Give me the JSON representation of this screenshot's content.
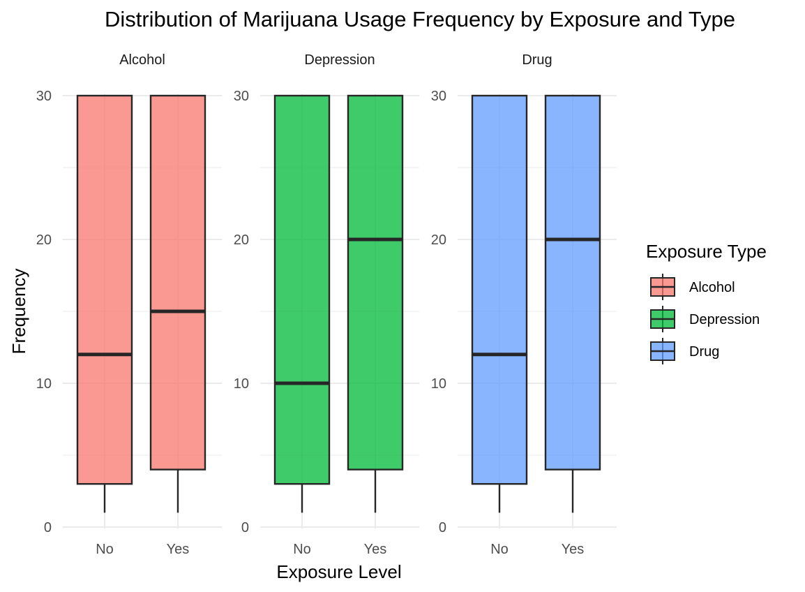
{
  "chart_data": {
    "type": "boxplot",
    "title": "Distribution of Marijuana Usage Frequency by Exposure and Type",
    "xlabel": "Exposure Level",
    "ylabel": "Frequency",
    "ylim": [
      0,
      30
    ],
    "yticks": [
      0,
      10,
      20,
      30
    ],
    "categories": [
      "No",
      "Yes"
    ],
    "grid": true,
    "legend": {
      "title": "Exposure Type",
      "position": "right",
      "entries": [
        {
          "label": "Alcohol",
          "color": "#F8766D"
        },
        {
          "label": "Depression",
          "color": "#00BA38"
        },
        {
          "label": "Drug",
          "color": "#619CFF"
        }
      ]
    },
    "facets": [
      {
        "name": "Alcohol",
        "color": "#F8766D",
        "boxes": [
          {
            "x": "No",
            "min": 1,
            "q1": 3,
            "median": 12,
            "q3": 30,
            "max": 30
          },
          {
            "x": "Yes",
            "min": 1,
            "q1": 4,
            "median": 15,
            "q3": 30,
            "max": 30
          }
        ]
      },
      {
        "name": "Depression",
        "color": "#00BA38",
        "boxes": [
          {
            "x": "No",
            "min": 1,
            "q1": 3,
            "median": 10,
            "q3": 30,
            "max": 30
          },
          {
            "x": "Yes",
            "min": 1,
            "q1": 4,
            "median": 20,
            "q3": 30,
            "max": 30
          }
        ]
      },
      {
        "name": "Drug",
        "color": "#619CFF",
        "boxes": [
          {
            "x": "No",
            "min": 1,
            "q1": 3,
            "median": 12,
            "q3": 30,
            "max": 30
          },
          {
            "x": "Yes",
            "min": 1,
            "q1": 4,
            "median": 20,
            "q3": 30,
            "max": 30
          }
        ]
      }
    ]
  }
}
